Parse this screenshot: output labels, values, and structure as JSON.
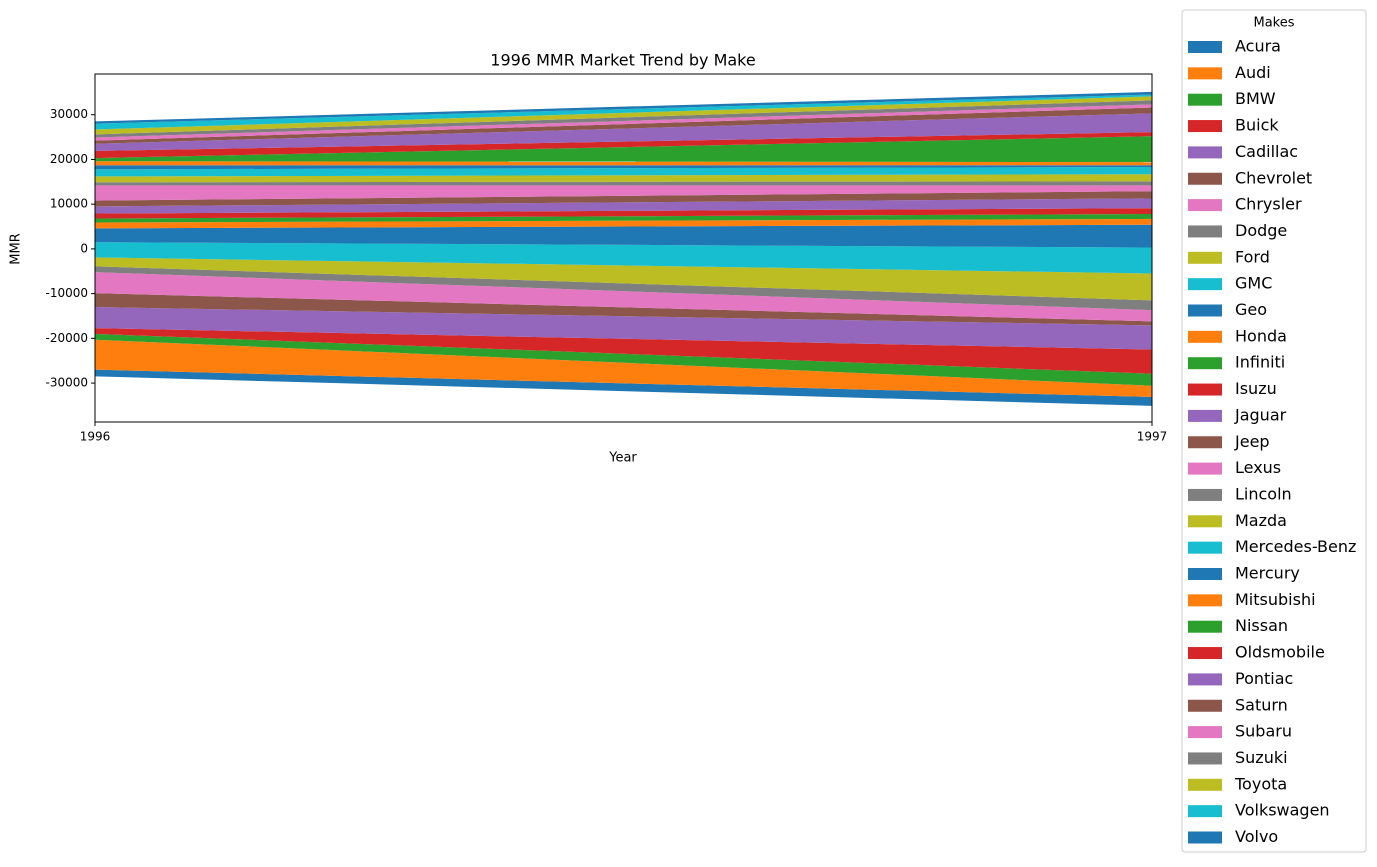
{
  "chart_data": {
    "type": "stream",
    "title": "1996 MMR Market Trend by Make",
    "x_label": "Year",
    "y_label": "MMR",
    "x": [
      1996,
      1997
    ],
    "xlim": [
      1996,
      1997
    ],
    "xticks": [
      1996,
      1997
    ],
    "ylim": [
      -38700,
      39100
    ],
    "yticks": [
      -30000,
      -20000,
      -10000,
      0,
      10000,
      20000,
      30000
    ],
    "legend_title": "Makes",
    "series": [
      {
        "name": "Acura",
        "color": "#1f77b4",
        "values": [
          1500,
          2000
        ]
      },
      {
        "name": "Audi",
        "color": "#ff7f0e",
        "values": [
          6700,
          2500
        ]
      },
      {
        "name": "BMW",
        "color": "#2ca02c",
        "values": [
          1300,
          2700
        ]
      },
      {
        "name": "Buick",
        "color": "#d62728",
        "values": [
          1300,
          5400
        ]
      },
      {
        "name": "Cadillac",
        "color": "#9467bd",
        "values": [
          4700,
          5400
        ]
      },
      {
        "name": "Chevrolet",
        "color": "#8c564b",
        "values": [
          3100,
          900
        ]
      },
      {
        "name": "Chrysler",
        "color": "#e377c2",
        "values": [
          4700,
          2500
        ]
      },
      {
        "name": "Dodge",
        "color": "#7f7f7f",
        "values": [
          1300,
          2200
        ]
      },
      {
        "name": "Ford",
        "color": "#bcbd22",
        "values": [
          2000,
          6000
        ]
      },
      {
        "name": "GMC",
        "color": "#17becf",
        "values": [
          3400,
          5800
        ]
      },
      {
        "name": "Geo",
        "color": "#1f77b4",
        "values": [
          3100,
          5100
        ]
      },
      {
        "name": "Honda",
        "color": "#ff7f0e",
        "values": [
          1300,
          1300
        ]
      },
      {
        "name": "Infiniti",
        "color": "#2ca02c",
        "values": [
          900,
          1100
        ]
      },
      {
        "name": "Isuzu",
        "color": "#d62728",
        "values": [
          1100,
          1300
        ]
      },
      {
        "name": "Jaguar",
        "color": "#9467bd",
        "values": [
          1600,
          2200
        ]
      },
      {
        "name": "Jeep",
        "color": "#8c564b",
        "values": [
          1300,
          1600
        ]
      },
      {
        "name": "Lexus",
        "color": "#e377c2",
        "values": [
          3400,
          1300
        ]
      },
      {
        "name": "Lincoln",
        "color": "#7f7f7f",
        "values": [
          700,
          900
        ]
      },
      {
        "name": "Mazda",
        "color": "#bcbd22",
        "values": [
          1300,
          1600
        ]
      },
      {
        "name": "Mercedes-Benz",
        "color": "#17becf",
        "values": [
          1600,
          1600
        ]
      },
      {
        "name": "Mercury",
        "color": "#1f77b4",
        "values": [
          900,
          400
        ]
      },
      {
        "name": "Mitsubishi",
        "color": "#ff7f0e",
        "values": [
          900,
          700
        ]
      },
      {
        "name": "Nissan",
        "color": "#2ca02c",
        "values": [
          700,
          5800
        ]
      },
      {
        "name": "Oldsmobile",
        "color": "#d62728",
        "values": [
          1600,
          900
        ]
      },
      {
        "name": "Pontiac",
        "color": "#9467bd",
        "values": [
          1600,
          4200
        ]
      },
      {
        "name": "Saturn",
        "color": "#8c564b",
        "values": [
          700,
          1300
        ]
      },
      {
        "name": "Subaru",
        "color": "#e377c2",
        "values": [
          700,
          700
        ]
      },
      {
        "name": "Suzuki",
        "color": "#7f7f7f",
        "values": [
          700,
          900
        ]
      },
      {
        "name": "Toyota",
        "color": "#bcbd22",
        "values": [
          1100,
          900
        ]
      },
      {
        "name": "Volkswagen",
        "color": "#17becf",
        "values": [
          1300,
          400
        ]
      },
      {
        "name": "Volvo",
        "color": "#1f77b4",
        "values": [
          500,
          600
        ]
      }
    ]
  }
}
